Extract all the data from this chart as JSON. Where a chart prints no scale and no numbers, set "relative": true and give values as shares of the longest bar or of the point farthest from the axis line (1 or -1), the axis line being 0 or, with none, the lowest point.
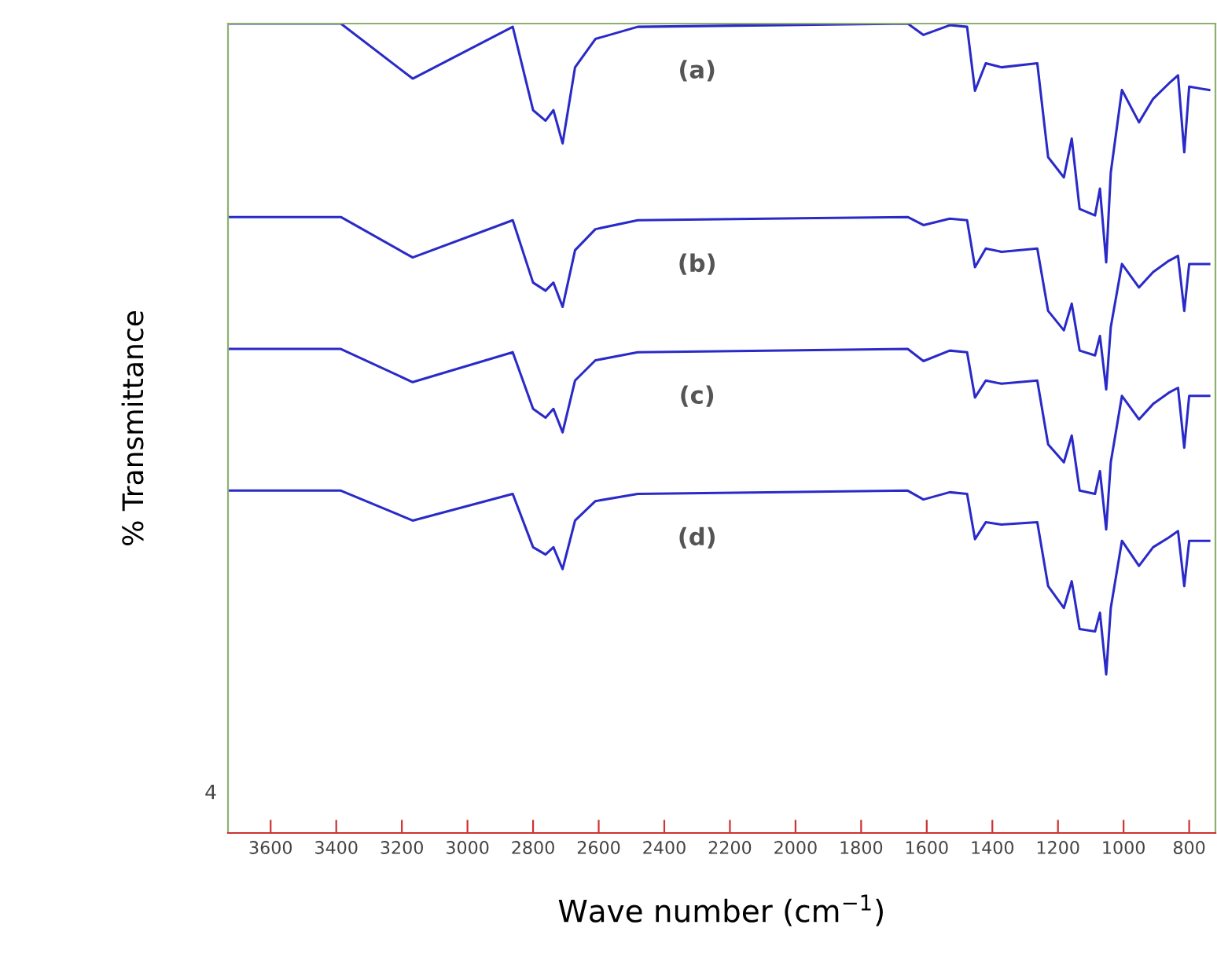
{
  "chart_data": {
    "type": "line",
    "xlabel": "Wave number (cm$^{−1}$)",
    "ylabel": "% Transmittance",
    "relative": true,
    "xlim": [
      3730,
      720
    ],
    "xticks": [
      3600,
      3400,
      3200,
      3000,
      2800,
      2600,
      2400,
      2200,
      2000,
      1800,
      1600,
      1400,
      1200,
      1000,
      800
    ],
    "legend": false,
    "grid": false,
    "marker": "none",
    "line_style": "solid",
    "x": [
      3730,
      3386,
      3167,
      2862,
      2800,
      2762,
      2738,
      2710,
      2672,
      2610,
      2481,
      1658,
      1610,
      1530,
      1477,
      1453,
      1420,
      1372,
      1263,
      1230,
      1182,
      1158,
      1134,
      1087,
      1072,
      1053,
      1039,
      1005,
      953,
      910,
      862,
      834,
      815,
      800,
      739
    ],
    "series": [
      {
        "name": "(a)",
        "color": "#2a2ac8",
        "values": [
          1.0,
          1.0,
          0.932,
          0.996,
          0.893,
          0.88,
          0.893,
          0.852,
          0.946,
          0.981,
          0.996,
          1.0,
          0.986,
          0.998,
          0.996,
          0.917,
          0.951,
          0.946,
          0.951,
          0.835,
          0.81,
          0.858,
          0.771,
          0.763,
          0.796,
          0.705,
          0.816,
          0.918,
          0.878,
          0.907,
          0.926,
          0.936,
          0.841,
          0.922,
          0.918
        ]
      },
      {
        "name": "(b)",
        "color": "#2a2ac8",
        "values": [
          0.761,
          0.761,
          0.711,
          0.757,
          0.68,
          0.67,
          0.68,
          0.65,
          0.72,
          0.746,
          0.757,
          0.761,
          0.751,
          0.759,
          0.757,
          0.699,
          0.722,
          0.718,
          0.722,
          0.645,
          0.621,
          0.654,
          0.596,
          0.59,
          0.614,
          0.548,
          0.625,
          0.703,
          0.674,
          0.693,
          0.707,
          0.713,
          0.645,
          0.703,
          0.703
        ]
      },
      {
        "name": "(c)",
        "color": "#2a2ac8",
        "values": [
          0.598,
          0.598,
          0.557,
          0.594,
          0.524,
          0.513,
          0.524,
          0.495,
          0.559,
          0.584,
          0.594,
          0.598,
          0.583,
          0.596,
          0.594,
          0.538,
          0.559,
          0.555,
          0.559,
          0.48,
          0.458,
          0.491,
          0.423,
          0.419,
          0.447,
          0.375,
          0.458,
          0.54,
          0.511,
          0.53,
          0.544,
          0.55,
          0.476,
          0.54,
          0.54
        ]
      },
      {
        "name": "(d)",
        "color": "#2a2ac8",
        "values": [
          0.423,
          0.423,
          0.386,
          0.419,
          0.353,
          0.344,
          0.353,
          0.326,
          0.386,
          0.41,
          0.419,
          0.423,
          0.412,
          0.421,
          0.419,
          0.363,
          0.384,
          0.381,
          0.384,
          0.305,
          0.278,
          0.311,
          0.252,
          0.249,
          0.272,
          0.196,
          0.278,
          0.361,
          0.33,
          0.353,
          0.365,
          0.373,
          0.305,
          0.361,
          0.361
        ]
      }
    ],
    "annotations": [
      "4"
    ]
  }
}
